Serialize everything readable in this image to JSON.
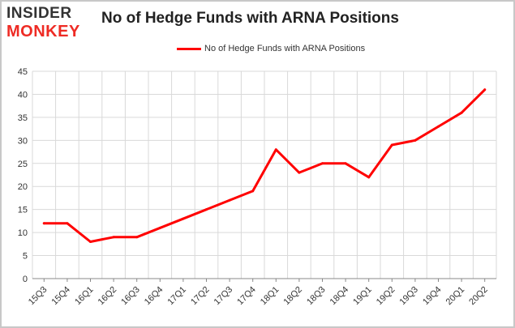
{
  "brand": {
    "line1": "INSIDER",
    "line2": "MONKEY"
  },
  "chart_data": {
    "type": "line",
    "title": "No of Hedge Funds with ARNA Positions",
    "legend": "top-center",
    "grid": true,
    "ylim": [
      0,
      45
    ],
    "yticks": [
      "0",
      "5",
      "10",
      "15",
      "20",
      "25",
      "30",
      "35",
      "40",
      "45"
    ],
    "categories": [
      "15Q3",
      "15Q4",
      "16Q1",
      "16Q2",
      "16Q3",
      "16Q4",
      "17Q1",
      "17Q2",
      "17Q3",
      "17Q4",
      "18Q1",
      "18Q2",
      "18Q3",
      "18Q4",
      "19Q1",
      "19Q2",
      "19Q3",
      "19Q4",
      "20Q1",
      "20Q2"
    ],
    "series": [
      {
        "name": "No of Hedge Funds with ARNA Positions",
        "color": "#ff0000",
        "values": [
          12,
          12,
          8,
          9,
          9,
          11,
          13,
          15,
          17,
          19,
          28,
          23,
          25,
          25,
          22,
          29,
          30,
          33,
          36,
          41
        ]
      }
    ],
    "colors": {
      "frame_border": "#c8c8c8",
      "grid": "#d9d9d9",
      "axis": "#888888"
    }
  }
}
